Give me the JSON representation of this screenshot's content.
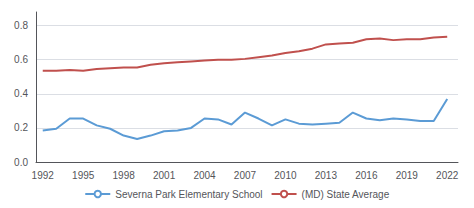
{
  "chart_data": {
    "type": "line",
    "x": [
      1992,
      1993,
      1994,
      1995,
      1996,
      1997,
      1998,
      1999,
      2000,
      2001,
      2002,
      2003,
      2004,
      2005,
      2006,
      2007,
      2008,
      2009,
      2010,
      2011,
      2012,
      2013,
      2014,
      2015,
      2016,
      2017,
      2018,
      2019,
      2020,
      2021,
      2022
    ],
    "series": [
      {
        "name": "Severna Park Elementary School",
        "color": "#5b9bd5",
        "values": [
          0.185,
          0.195,
          0.255,
          0.255,
          0.215,
          0.195,
          0.155,
          0.135,
          0.155,
          0.18,
          0.185,
          0.2,
          0.255,
          0.25,
          0.22,
          0.29,
          0.255,
          0.215,
          0.25,
          0.225,
          0.22,
          0.225,
          0.23,
          0.29,
          0.255,
          0.245,
          0.255,
          0.25,
          0.24,
          0.24,
          0.37
        ]
      },
      {
        "name": "(MD) State Average",
        "color": "#c0504d",
        "values": [
          0.535,
          0.535,
          0.54,
          0.535,
          0.545,
          0.55,
          0.555,
          0.555,
          0.57,
          0.58,
          0.585,
          0.59,
          0.595,
          0.6,
          0.6,
          0.605,
          0.615,
          0.625,
          0.64,
          0.65,
          0.665,
          0.69,
          0.695,
          0.7,
          0.72,
          0.725,
          0.715,
          0.72,
          0.72,
          0.73,
          0.735
        ]
      }
    ],
    "xlim": [
      1991.5,
      2022.8
    ],
    "xticks": [
      1992,
      1995,
      1998,
      2001,
      2004,
      2007,
      2010,
      2013,
      2016,
      2019,
      2022
    ],
    "ylim": [
      0,
      0.88
    ],
    "yticks": [
      {
        "value": 0,
        "label": "0.0"
      },
      0.2,
      0.4,
      0.6,
      0.8
    ],
    "grid": true,
    "legend": "bottom"
  }
}
